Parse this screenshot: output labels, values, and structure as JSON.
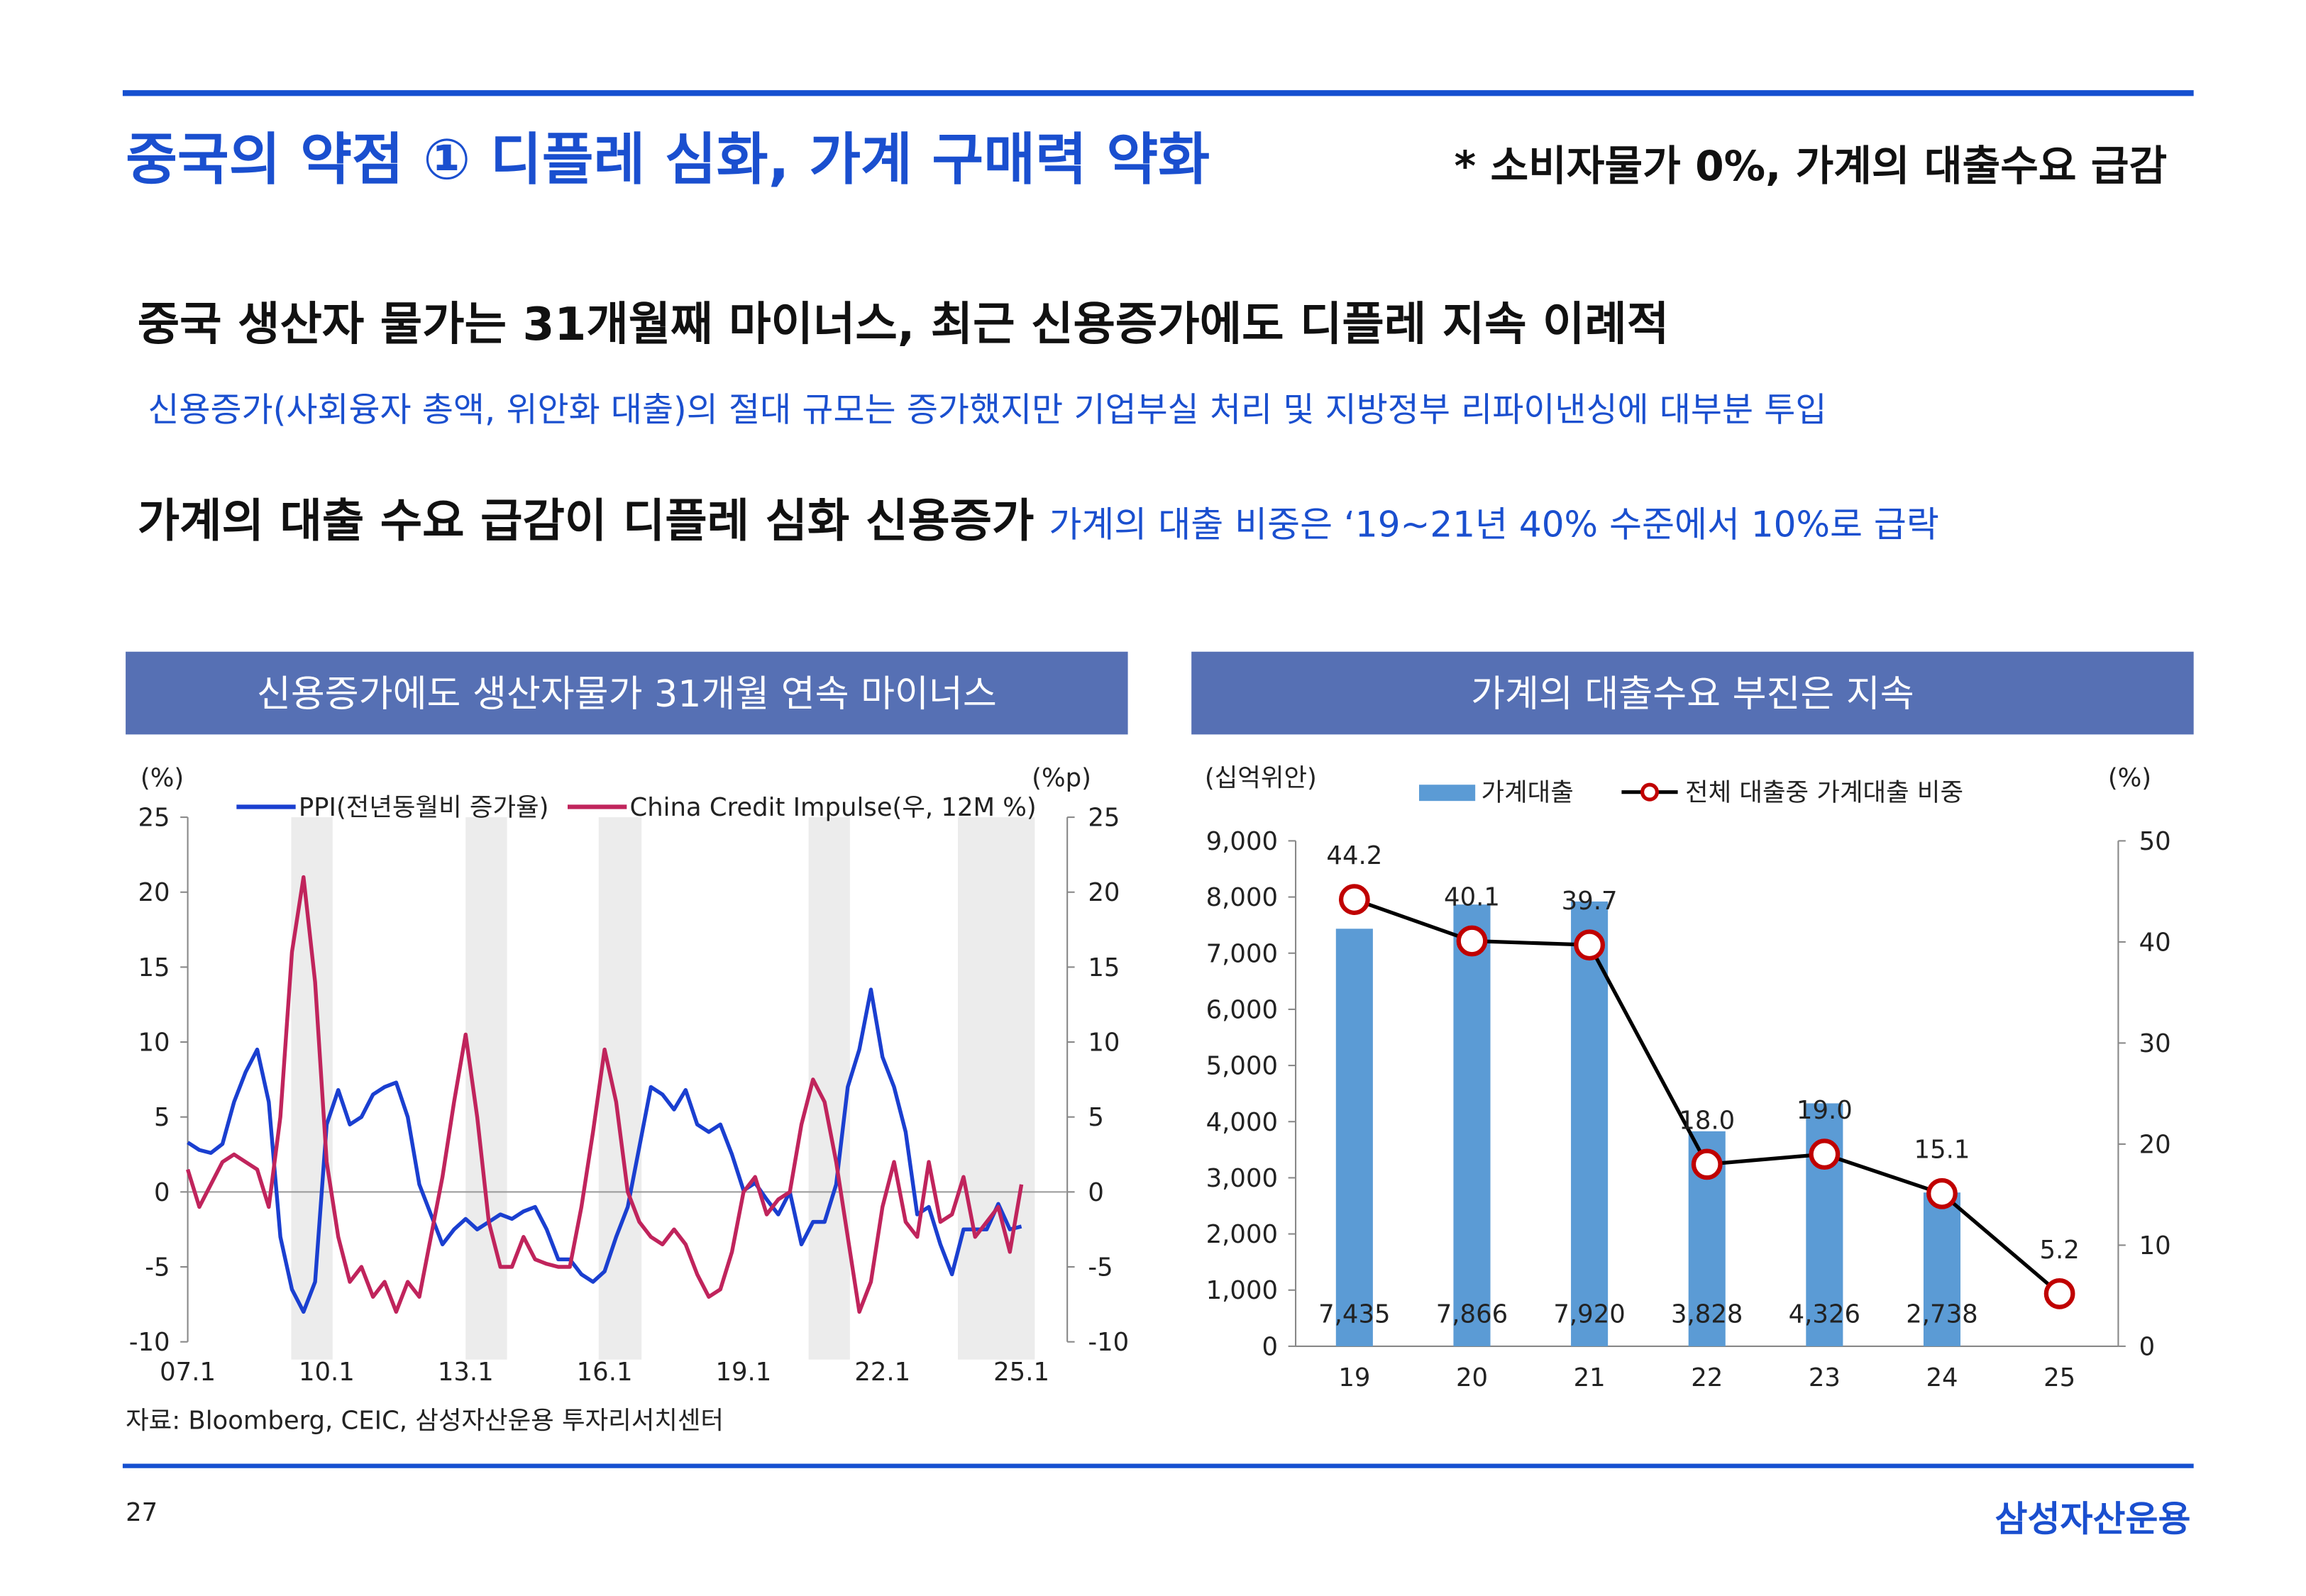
{
  "header": {
    "title": "중국의 약점 ① 디플레 심화, 가계 구매력 약화",
    "note": "* 소비자물가 0%, 가계의 대출수요 급감"
  },
  "body": {
    "headline": "중국 생산자 물가는 31개월째 마이너스, 최근 신용증가에도 디플레 지속 이례적",
    "subline": "신용증가(사회융자 총액, 위안화 대출)의 절대 규모는 증가했지만 기업부실 처리 및 지방정부 리파이낸싱에 대부분 투입",
    "line3": {
      "main": "가계의 대출 수요 급감이 디플레 심화 신용증가",
      "highlight": "가계의 대출 비중은 ‘19~21년 40% 수준에서 10%로 급락"
    }
  },
  "chart_data": [
    {
      "type": "line",
      "title": "신용증가에도 생산자물가 31개월 연속 마이너스",
      "y_label": "(%)",
      "y2_label": "(%p)",
      "categories": [
        "07.1",
        null,
        null,
        null,
        null,
        null,
        null,
        null,
        null,
        null,
        null,
        null,
        "10.1",
        null,
        null,
        null,
        null,
        null,
        null,
        null,
        null,
        null,
        null,
        null,
        "13.1",
        null,
        null,
        null,
        null,
        null,
        null,
        null,
        null,
        null,
        null,
        null,
        "16.1",
        null,
        null,
        null,
        null,
        null,
        null,
        null,
        null,
        null,
        null,
        null,
        "19.1",
        null,
        null,
        null,
        null,
        null,
        null,
        null,
        null,
        null,
        null,
        null,
        "22.1",
        null,
        null,
        null,
        null,
        null,
        null,
        null,
        null,
        null,
        null,
        null,
        "25.1"
      ],
      "series": [
        {
          "name": "PPI(전년동월비 증가율)",
          "color": "#1a3fd0",
          "values": [
            3.3,
            2.8,
            2.6,
            3.2,
            6,
            8,
            9.5,
            6,
            -3,
            -6.5,
            -8,
            -6,
            4.5,
            6.8,
            4.5,
            5,
            6.5,
            7,
            7.3,
            5,
            0.5,
            -1.5,
            -3.5,
            -2.5,
            -1.8,
            -2.5,
            -2,
            -1.5,
            -1.8,
            -1.3,
            -1,
            -2.5,
            -4.5,
            -4.5,
            -5.5,
            -6,
            -5.3,
            -3,
            -1,
            3,
            7,
            6.5,
            5.5,
            6.8,
            4.5,
            4,
            4.5,
            2.5,
            0.1,
            0.6,
            -0.5,
            -1.5,
            0,
            -3.5,
            -2,
            -2,
            0.5,
            7,
            9.5,
            13.5,
            9,
            7,
            4,
            -1.5,
            -1,
            -3.5,
            -5.5,
            -2.5,
            -2.5,
            -2.5,
            -0.8,
            -2.5,
            -2.3
          ]
        },
        {
          "name": "China Credit Impulse(우, 12M %)",
          "color": "#c0245c",
          "axis": "y2",
          "values": [
            1.5,
            -1,
            0.5,
            2,
            2.5,
            2,
            1.5,
            -1,
            5,
            16,
            21,
            14,
            2,
            -3,
            -6,
            -5,
            -7,
            -6,
            -8,
            -6,
            -7,
            -3,
            1,
            6,
            10.5,
            5,
            -2,
            -5,
            -5,
            -3,
            -4.5,
            -4.8,
            -5,
            -5,
            -1,
            4,
            9.5,
            6,
            0,
            -2,
            -3,
            -3.5,
            -2.5,
            -3.5,
            -5.5,
            -7,
            -6.5,
            -4,
            0,
            1,
            -1.5,
            -0.5,
            0,
            4.5,
            7.5,
            6,
            2,
            -3,
            -8,
            -6,
            -1,
            2,
            -2,
            -3,
            2,
            -2,
            -1.5,
            1,
            -3,
            -2,
            -1,
            -4,
            0.5
          ]
        }
      ],
      "ylim": [
        -10,
        25
      ],
      "yticks": [
        -10,
        -5,
        0,
        5,
        10,
        15,
        20,
        25
      ],
      "y2lim": [
        -10,
        25
      ],
      "y2ticks": [
        -10,
        -5,
        0,
        5,
        10,
        15,
        20,
        25
      ],
      "legend": "top"
    },
    {
      "type": "combo",
      "title": "가계의 대출수요 부진은 지속",
      "y_label": "(십억위안)",
      "y2_label": "(%)",
      "categories": [
        "19",
        "20",
        "21",
        "22",
        "23",
        "24",
        "25"
      ],
      "series": [
        {
          "name": "가계대출",
          "type": "bar",
          "color": "#5b9bd5",
          "values": [
            7435,
            7866,
            7920,
            3828,
            4326,
            2738,
            null
          ],
          "value_labels": [
            "7,435",
            "7,866",
            "7,920",
            "3,828",
            "4,326",
            "2,738",
            null
          ]
        },
        {
          "name": "전체 대출중 가계대출 비중",
          "type": "line",
          "axis": "y2",
          "color": "#000000",
          "marker_color": "#c00000",
          "values": [
            44.2,
            40.1,
            39.7,
            18,
            19,
            15.1,
            5.2
          ],
          "value_labels": [
            "44.2",
            "40.1",
            "39.7",
            "18.0",
            "19.0",
            "15.1",
            "5.2"
          ]
        }
      ],
      "ylim": [
        0,
        9000
      ],
      "yticks": [
        0,
        {
          "value": 1000,
          "label": "1,000"
        },
        {
          "value": 2000,
          "label": "2,000"
        },
        {
          "value": 3000,
          "label": "3,000"
        },
        {
          "value": 4000,
          "label": "4,000"
        },
        {
          "value": 5000,
          "label": "5,000"
        },
        {
          "value": 6000,
          "label": "6,000"
        },
        {
          "value": 7000,
          "label": "7,000"
        },
        {
          "value": 8000,
          "label": "8,000"
        },
        {
          "value": 9000,
          "label": "9,000"
        }
      ],
      "y2lim": [
        0,
        50
      ],
      "y2ticks": [
        0,
        10,
        20,
        30,
        40,
        50
      ],
      "legend": "top"
    }
  ],
  "footer": {
    "source": "자료: Bloomberg, CEIC, 삼성자산운용 투자리서치센터",
    "page": "27",
    "logo": "삼성자산운용"
  }
}
